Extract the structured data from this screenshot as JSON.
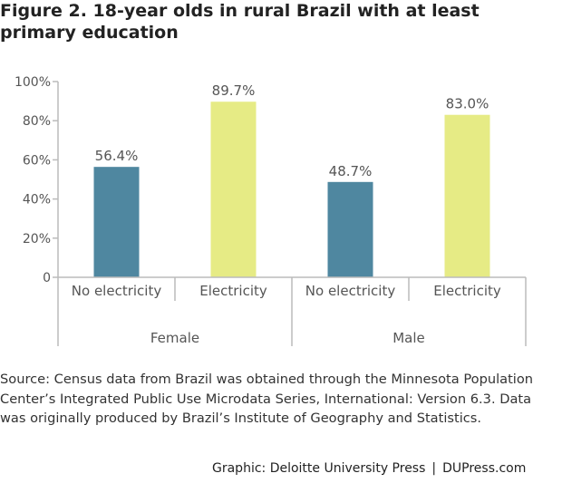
{
  "title": "Figure 2. 18-year olds in rural Brazil with at least primary education",
  "source": "Source: Census data from Brazil was obtained through the Minnesota Population Center’s Integrated Public Use Microdata Series, International: Version 6.3. Data was originally produced by Brazil’s Institute of Geography and Statistics.",
  "credit": {
    "graphic": "Graphic: Deloitte University Press",
    "separator": "|",
    "site": "DUPress.com"
  },
  "chart_data": {
    "type": "bar",
    "title": "",
    "xlabel": "",
    "ylabel": "",
    "ylim": [
      0,
      100
    ],
    "yticks": [
      "0",
      "20%",
      "40%",
      "60%",
      "80%",
      "100%"
    ],
    "ytick_values": [
      0,
      20,
      40,
      60,
      80,
      100
    ],
    "groups": [
      "Female",
      "Male"
    ],
    "categories": [
      "No electricity",
      "Electricity",
      "No electricity",
      "Electricity"
    ],
    "category_group": [
      0,
      0,
      1,
      1
    ],
    "values": [
      56.4,
      89.7,
      48.7,
      83.0
    ],
    "data_labels": [
      "56.4%",
      "89.7%",
      "48.7%",
      "83.0%"
    ],
    "bar_colors": [
      "#4f87a0",
      "#e6eb85",
      "#4f87a0",
      "#e6eb85"
    ],
    "axis_color": "#bbbbbb",
    "grid": false,
    "legend": "none"
  }
}
